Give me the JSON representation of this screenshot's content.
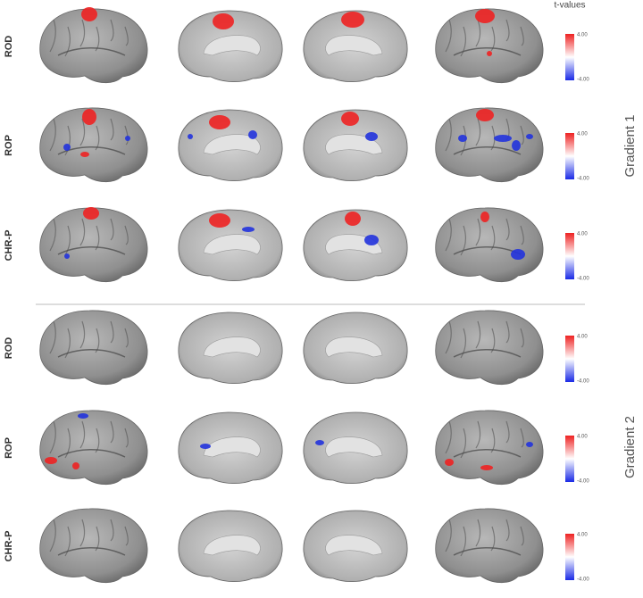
{
  "header": {
    "title": "t-values"
  },
  "groups": [
    {
      "label": "Gradient 1",
      "rows": [
        {
          "label": "ROD",
          "colorbar": {
            "max": "4.00",
            "min": "-4.00"
          }
        },
        {
          "label": "ROP",
          "colorbar": {
            "max": "4.00",
            "min": "-4.00"
          }
        },
        {
          "label": "CHR-P",
          "colorbar": {
            "max": "4.00",
            "min": "-4.00"
          }
        }
      ]
    },
    {
      "label": "Gradient 2",
      "rows": [
        {
          "label": "ROD",
          "colorbar": {
            "max": "4.00",
            "min": "-4.00"
          }
        },
        {
          "label": "ROP",
          "colorbar": {
            "max": "4.00",
            "min": "-4.00"
          }
        },
        {
          "label": "CHR-P",
          "colorbar": {
            "max": "4.00",
            "min": "-4.00"
          }
        }
      ]
    }
  ]
}
